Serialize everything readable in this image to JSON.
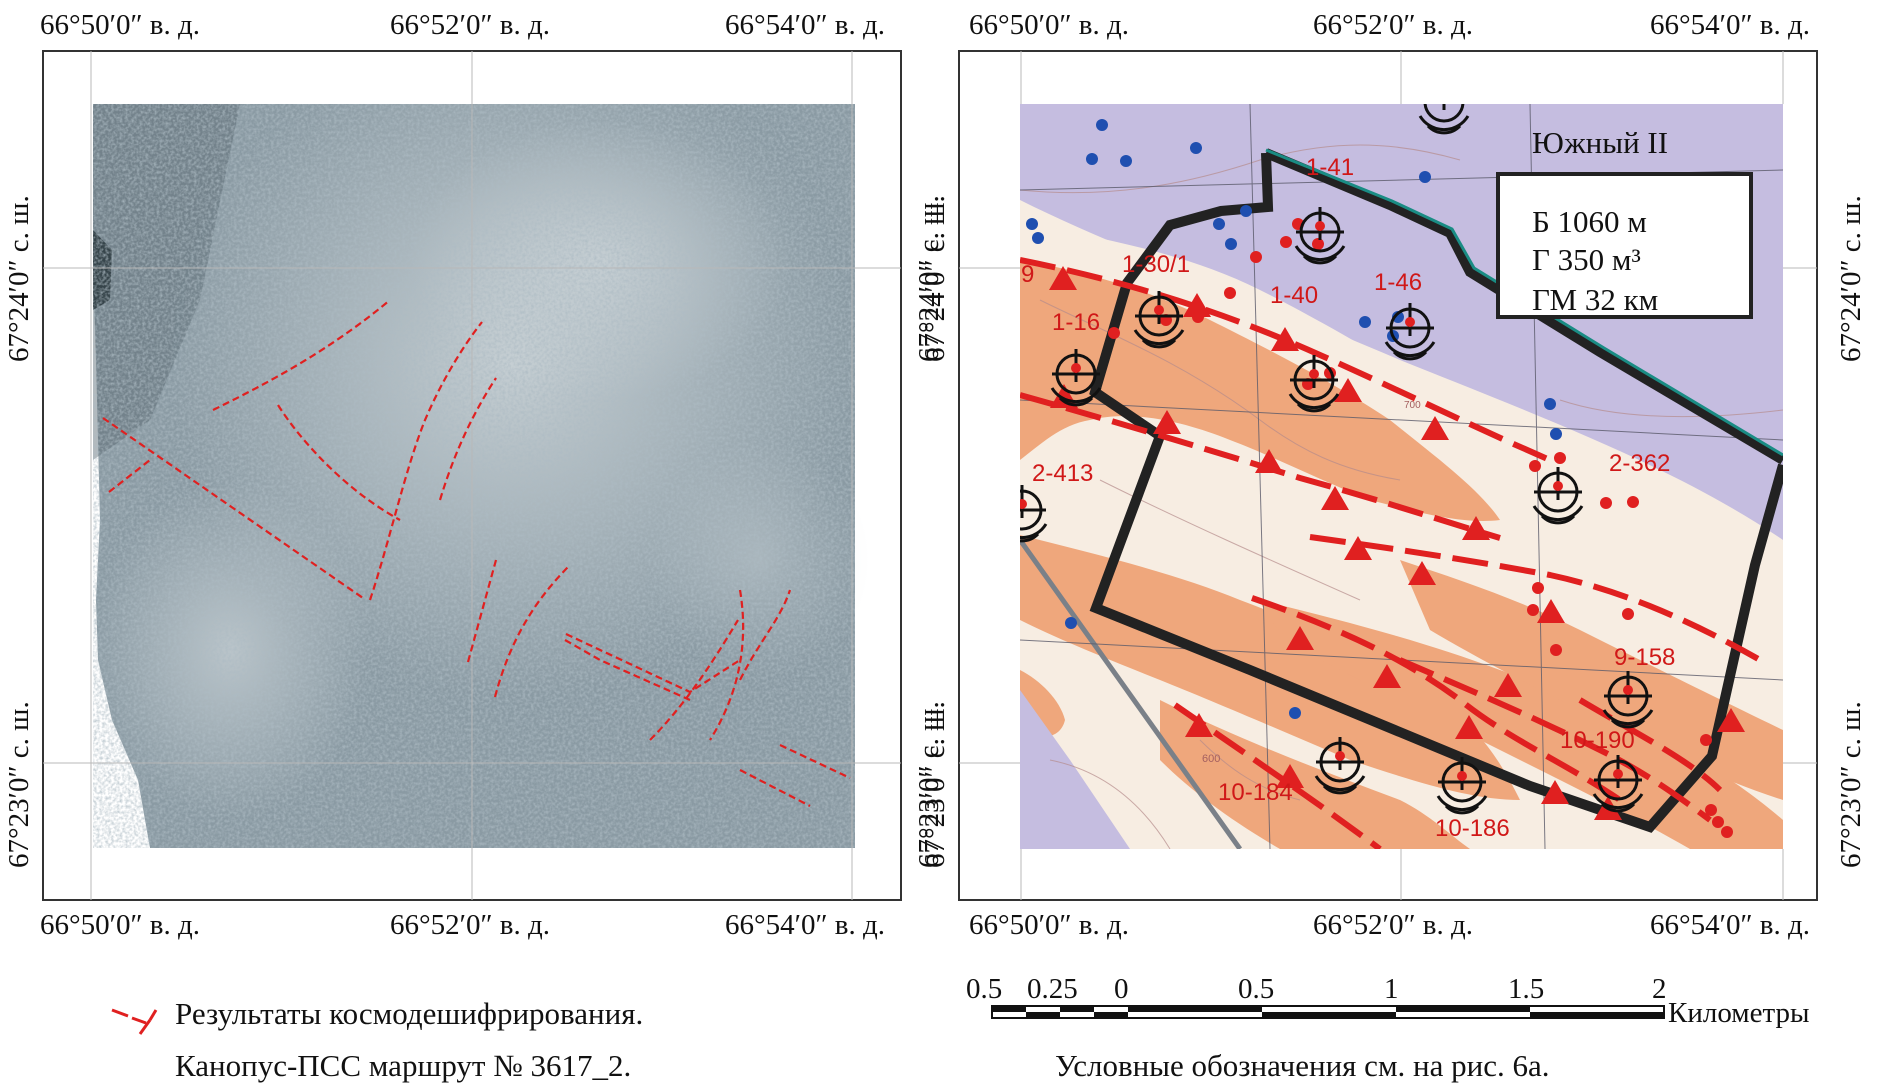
{
  "left_map": {
    "coords": {
      "top_lon": [
        "66°50′0″ в. д.",
        "66°52′0″ в. д.",
        "66°54′0″ в. д."
      ],
      "bottom_lon": [
        "66°50′0″ в. д.",
        "66°52′0″ в. д.",
        "66°54′0″ в. д."
      ],
      "left_lat": [
        "67°24′0″ с. ш.",
        "67°23′0″ с. ш."
      ],
      "right_lat": [
        "67°24′0″ с. ш.",
        "67°23′0″ с. ш."
      ]
    },
    "legend_line1": "Результаты космодешифрирования.",
    "legend_line2": "Канопус-ПСС маршрут № 3617_2.",
    "lineament_color": "#e02020"
  },
  "right_map": {
    "coords": {
      "top_lon": [
        "66°50′0″ в. д.",
        "66°52′0″ в. д.",
        "66°54′0″ в. д."
      ],
      "bottom_lon": [
        "66°50′0″ в. д.",
        "66°52′0″ в. д.",
        "66°54′0″ в. д."
      ],
      "left_lat": [
        "67°24′0″ с. ш.",
        "67°23′0″ с. ш."
      ],
      "right_lat": [
        "67°24′0″ с. ш.",
        "67°23′0″ с. ш."
      ]
    },
    "area_name": "Южный II",
    "params": [
      "Б 1060 м",
      "Г 350 м³",
      "ГМ 32 км"
    ],
    "labels": [
      "1-41",
      "1-46",
      "1-30/1",
      "1-40",
      "1-16",
      "2-413",
      "2-362",
      "9-158",
      "10-190",
      "10-184",
      "10-186",
      "9"
    ],
    "contour_labels": [
      "700",
      "600"
    ],
    "scale_ticks": [
      "0.5",
      "0.25",
      "0",
      "0.5",
      "1",
      "1.5",
      "2"
    ],
    "scale_unit": "Километры",
    "note": "Условные обозначения см. на рис. 6а.",
    "colors": {
      "lavender": "#c5bde0",
      "cream": "#f7ede2",
      "orange": "#efa77c",
      "fault": "#e02020",
      "boundary": "#222222",
      "teal_edge": "#1a8c84",
      "blue_dot": "#1f4fb0"
    }
  }
}
